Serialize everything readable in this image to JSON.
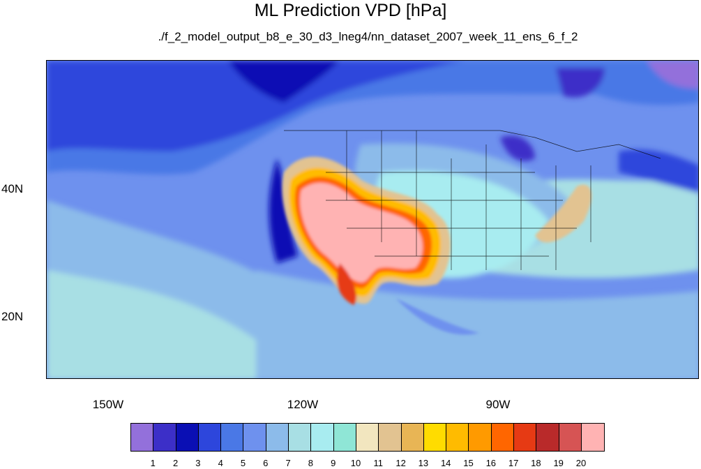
{
  "title": "ML Prediction VPD [hPa]",
  "subtitle": "./f_2_model_output_b8_e_30_d3_lneg4/nn_dataset_2007_week_11_ens_6_f_2",
  "lat_labels": [
    "40N",
    "20N"
  ],
  "lon_labels": [
    "150W",
    "120W",
    "90W"
  ],
  "colorbar": {
    "colors": [
      "#9370db",
      "#3c2fc8",
      "#0a0fb4",
      "#2d46dc",
      "#4a78e6",
      "#6e91ee",
      "#8cbbea",
      "#a8dfe4",
      "#a8ecf0",
      "#8fe6d6",
      "#f2e6bf",
      "#e2c391",
      "#e8b555",
      "#ffdc00",
      "#ffbb00",
      "#ff9a00",
      "#ff6600",
      "#e63a14",
      "#b92a2a",
      "#d65454",
      "#ffb3b3"
    ],
    "labels": [
      "1",
      "2",
      "3",
      "4",
      "5",
      "6",
      "7",
      "8",
      "9",
      "10",
      "11",
      "12",
      "13",
      "14",
      "15",
      "16",
      "17",
      "18",
      "19",
      "20"
    ]
  }
}
